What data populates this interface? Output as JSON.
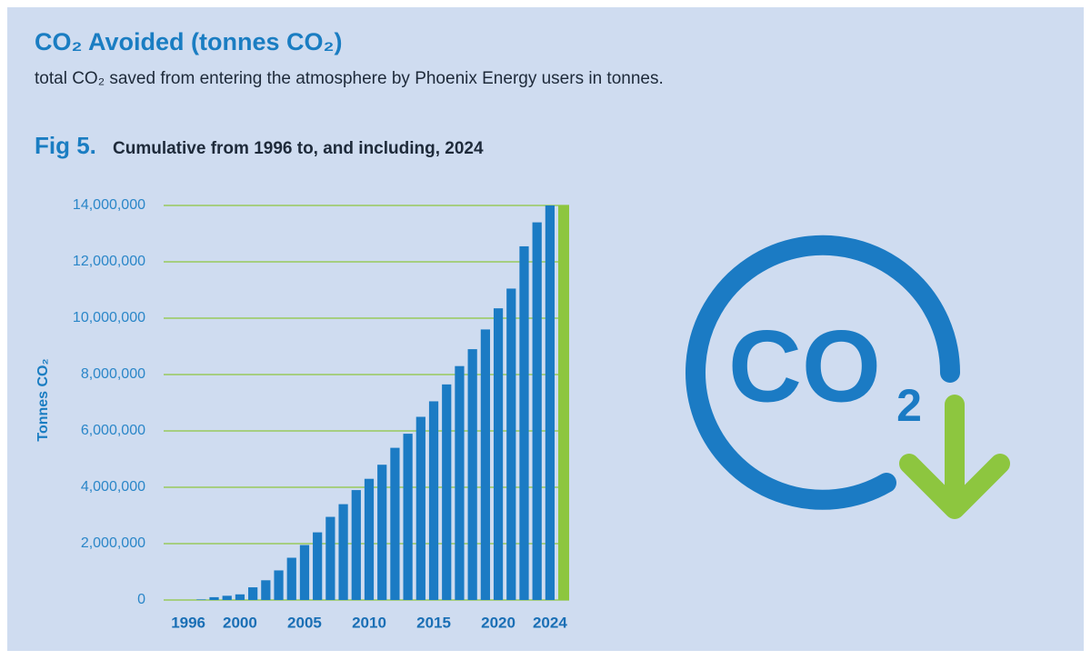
{
  "chart_data": {
    "type": "bar",
    "title": "CO₂ Avoided (tonnes CO₂)",
    "subtitle": "total CO₂ saved from entering the atmosphere by Phoenix Energy users in tonnes.",
    "figure_label": "Fig 5.",
    "figure_caption": "Cumulative from 1996 to, and including, 2024",
    "y_label": "Tonnes CO₂",
    "categories": [
      "1996",
      null,
      null,
      null,
      "2000",
      null,
      null,
      null,
      null,
      "2005",
      null,
      null,
      null,
      null,
      "2010",
      null,
      null,
      null,
      null,
      "2015",
      null,
      null,
      null,
      null,
      "2020",
      null,
      null,
      null,
      "2024"
    ],
    "values": [
      0,
      20000,
      100000,
      150000,
      200000,
      450000,
      700000,
      1050000,
      1500000,
      1950000,
      2400000,
      2950000,
      3400000,
      3900000,
      4300000,
      4800000,
      5400000,
      5900000,
      6500000,
      7050000,
      7650000,
      8300000,
      8900000,
      9600000,
      10350000,
      11050000,
      12550000,
      13400000,
      14000000
    ],
    "color": "#1b7bc4",
    "ylim": [
      0,
      14000000
    ],
    "yticks": [
      0,
      {
        "value": 2000000,
        "label": "2,000,000"
      },
      {
        "value": 4000000,
        "label": "4,000,000"
      },
      {
        "value": 6000000,
        "label": "6,000,000"
      },
      {
        "value": 8000000,
        "label": "8,000,000"
      },
      {
        "value": 10000000,
        "label": "10,000,000"
      },
      {
        "value": 12000000,
        "label": "12,000,000"
      },
      {
        "value": 14000000,
        "label": "14,000,000"
      }
    ],
    "grid": true,
    "grid_color": "#8dc63f"
  },
  "icon": {
    "label": "CO",
    "subscript": "2"
  }
}
